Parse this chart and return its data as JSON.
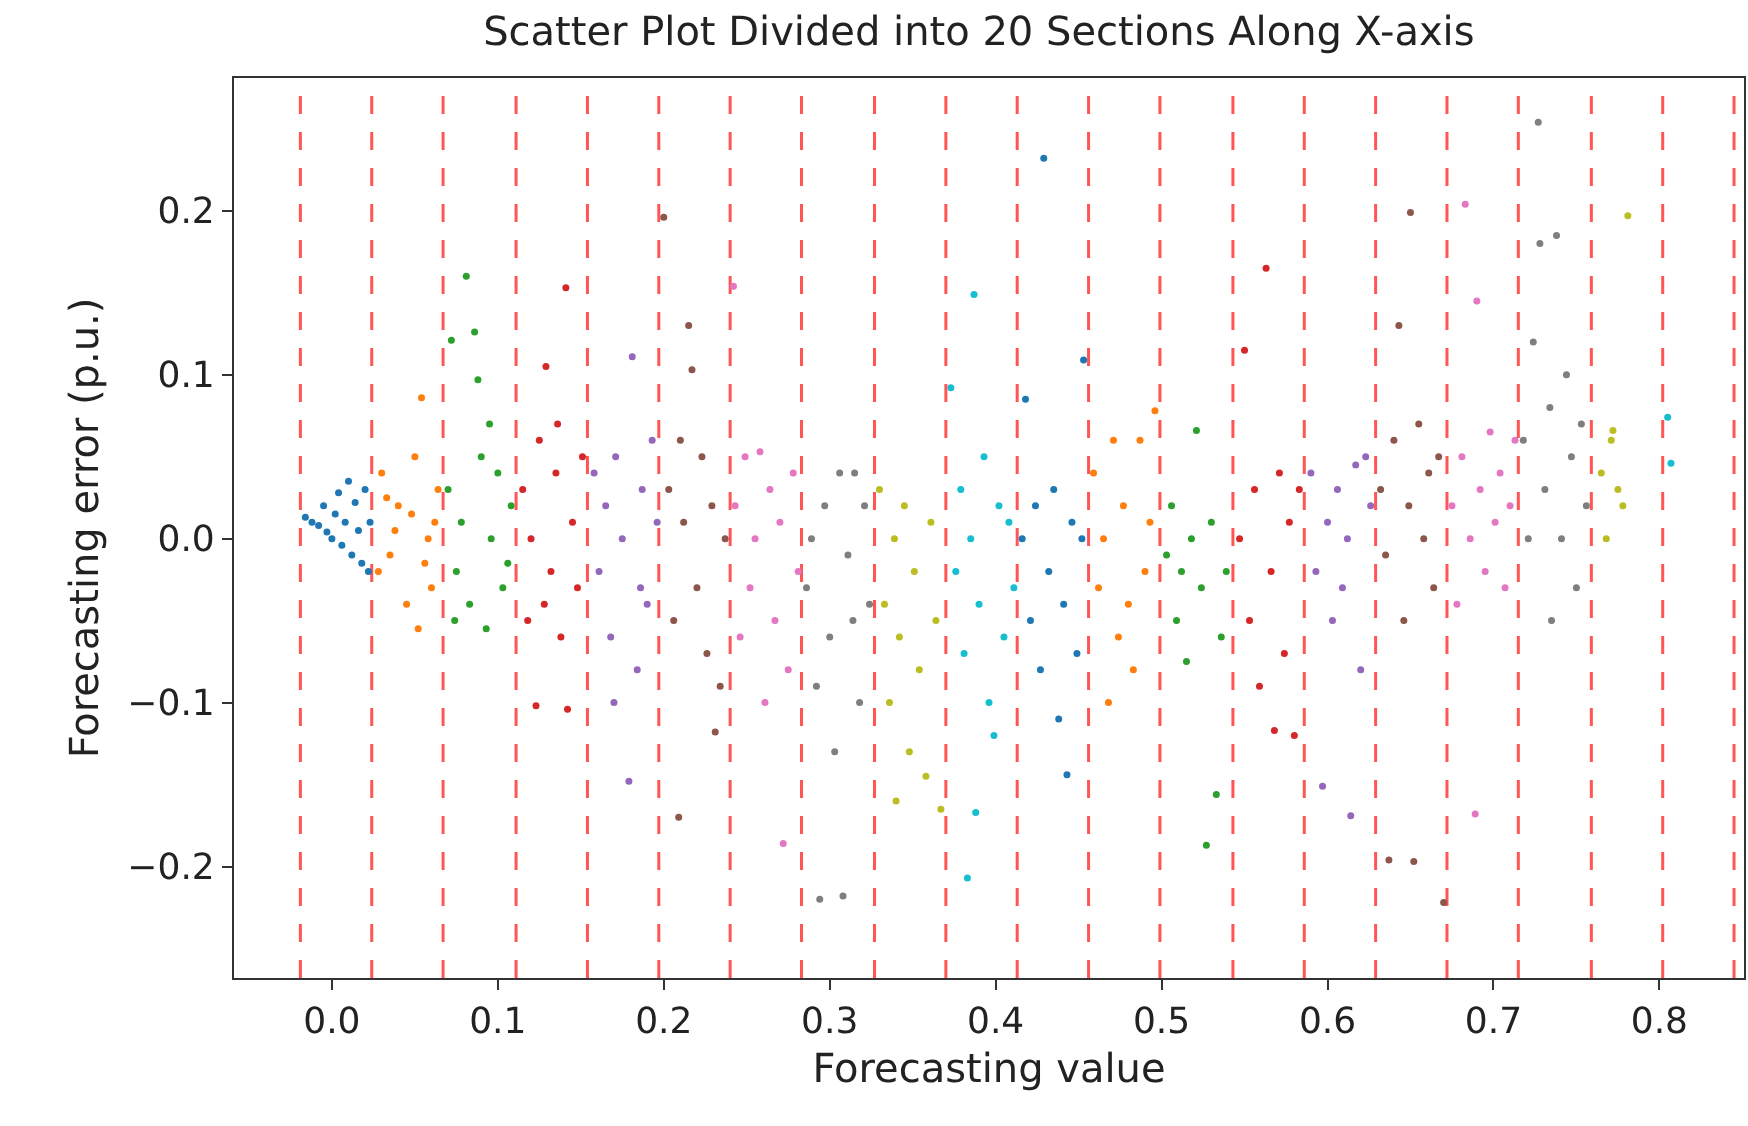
{
  "chart_data": {
    "type": "scatter",
    "title": "Scatter Plot Divided into 20 Sections Along X-axis",
    "xlabel": "Forecasting value",
    "ylabel": "Forecasting error (p.u.)",
    "xlim": [
      -0.059,
      0.851
    ],
    "ylim": [
      -0.268,
      0.281
    ],
    "xticks": [
      {
        "value": 0,
        "label": "0.0"
      },
      {
        "value": 0.1,
        "label": "0.1"
      },
      {
        "value": 0.2,
        "label": "0.2"
      },
      {
        "value": 0.3,
        "label": "0.3"
      },
      {
        "value": 0.4,
        "label": "0.4"
      },
      {
        "value": 0.5,
        "label": "0.5"
      },
      {
        "value": 0.6,
        "label": "0.6"
      },
      {
        "value": 0.7,
        "label": "0.7"
      },
      {
        "value": 0.8,
        "label": "0.8"
      }
    ],
    "yticks": [
      {
        "value": -0.2,
        "label": "−0.2"
      },
      {
        "value": -0.1,
        "label": "−0.1"
      },
      {
        "value": 0,
        "label": "0.0"
      },
      {
        "value": 0.1,
        "label": "0.1"
      },
      {
        "value": 0.2,
        "label": "0.2"
      }
    ],
    "grid": false,
    "marker": "circle",
    "series": [
      {
        "color": "#1f77b4",
        "x": [
          -0.016,
          -0.012,
          -0.008,
          -0.005,
          -0.003,
          0.0,
          0.002,
          0.004,
          0.006,
          0.008,
          0.01,
          0.012,
          0.014,
          0.016,
          0.018,
          0.02,
          0.022,
          0.023
        ],
        "values": [
          0.013,
          0.01,
          0.008,
          0.02,
          0.004,
          0.0,
          0.015,
          0.028,
          -0.004,
          0.01,
          0.035,
          -0.01,
          0.022,
          0.005,
          -0.015,
          0.03,
          -0.02,
          0.01
        ]
      },
      {
        "color": "#ff7f0e",
        "x": [
          0.03,
          0.035,
          0.04,
          0.045,
          0.05,
          0.054,
          0.058,
          0.06,
          0.064,
          0.028,
          0.038,
          0.048,
          0.052,
          0.062,
          0.033,
          0.056
        ],
        "values": [
          0.04,
          -0.01,
          0.02,
          -0.04,
          0.05,
          0.086,
          0.0,
          -0.03,
          0.03,
          -0.02,
          0.005,
          0.015,
          -0.055,
          0.01,
          0.025,
          -0.015
        ]
      },
      {
        "color": "#2ca02c",
        "x": [
          0.07,
          0.072,
          0.075,
          0.078,
          0.081,
          0.083,
          0.086,
          0.088,
          0.09,
          0.093,
          0.096,
          0.1,
          0.103,
          0.106,
          0.108,
          0.074,
          0.095
        ],
        "values": [
          0.03,
          0.121,
          -0.02,
          0.01,
          0.16,
          -0.04,
          0.126,
          0.097,
          0.05,
          -0.055,
          0.0,
          0.04,
          -0.03,
          -0.015,
          0.02,
          -0.05,
          0.07
        ]
      },
      {
        "color": "#d62728",
        "x": [
          0.115,
          0.118,
          0.12,
          0.123,
          0.125,
          0.129,
          0.132,
          0.135,
          0.138,
          0.141,
          0.142,
          0.145,
          0.148,
          0.151,
          0.128,
          0.136
        ],
        "values": [
          0.03,
          -0.05,
          0.0,
          -0.102,
          0.06,
          0.105,
          -0.02,
          0.04,
          -0.06,
          0.153,
          -0.104,
          0.01,
          -0.03,
          0.05,
          -0.04,
          0.07
        ]
      },
      {
        "color": "#9467bd",
        "x": [
          0.158,
          0.161,
          0.165,
          0.168,
          0.171,
          0.175,
          0.179,
          0.181,
          0.184,
          0.187,
          0.19,
          0.193,
          0.196,
          0.17,
          0.186
        ],
        "values": [
          0.04,
          -0.02,
          0.02,
          -0.06,
          0.05,
          0.0,
          -0.148,
          0.111,
          -0.08,
          0.03,
          -0.04,
          0.06,
          0.01,
          -0.1,
          -0.03
        ]
      },
      {
        "color": "#8c564b",
        "x": [
          0.2,
          0.203,
          0.206,
          0.209,
          0.212,
          0.215,
          0.217,
          0.22,
          0.223,
          0.226,
          0.229,
          0.231,
          0.234,
          0.237,
          0.21
        ],
        "values": [
          0.196,
          0.03,
          -0.05,
          -0.17,
          0.01,
          0.13,
          0.103,
          -0.03,
          0.05,
          -0.07,
          0.02,
          -0.118,
          -0.09,
          0.0,
          0.06
        ]
      },
      {
        "color": "#e377c2",
        "x": [
          0.242,
          0.243,
          0.246,
          0.249,
          0.252,
          0.255,
          0.258,
          0.261,
          0.264,
          0.267,
          0.27,
          0.272,
          0.275,
          0.278,
          0.281
        ],
        "values": [
          0.154,
          0.02,
          -0.06,
          0.05,
          -0.03,
          0.0,
          0.053,
          -0.1,
          0.03,
          -0.05,
          0.01,
          -0.186,
          -0.08,
          0.04,
          -0.02
        ]
      },
      {
        "color": "#7f7f7f",
        "x": [
          0.286,
          0.289,
          0.292,
          0.294,
          0.297,
          0.3,
          0.303,
          0.306,
          0.308,
          0.311,
          0.314,
          0.315,
          0.318,
          0.321,
          0.324
        ],
        "values": [
          -0.03,
          0.0,
          -0.09,
          -0.22,
          0.02,
          -0.06,
          -0.13,
          0.04,
          -0.218,
          -0.01,
          -0.05,
          0.04,
          -0.1,
          0.02,
          -0.04
        ]
      },
      {
        "color": "#bcbd22",
        "x": [
          0.33,
          0.333,
          0.336,
          0.339,
          0.342,
          0.345,
          0.348,
          0.351,
          0.354,
          0.358,
          0.361,
          0.364,
          0.367,
          0.34
        ],
        "values": [
          0.03,
          -0.04,
          -0.1,
          0.0,
          -0.06,
          0.02,
          -0.13,
          -0.02,
          -0.08,
          -0.145,
          0.01,
          -0.05,
          -0.165,
          -0.16
        ]
      },
      {
        "color": "#17becf",
        "x": [
          0.373,
          0.376,
          0.379,
          0.381,
          0.383,
          0.385,
          0.387,
          0.388,
          0.39,
          0.393,
          0.396,
          0.399,
          0.402,
          0.405,
          0.408,
          0.411
        ],
        "values": [
          0.092,
          -0.02,
          0.03,
          -0.07,
          -0.207,
          0.0,
          0.149,
          -0.167,
          -0.04,
          0.05,
          -0.1,
          -0.12,
          0.02,
          -0.06,
          0.01,
          -0.03
        ]
      },
      {
        "color": "#1f77b4",
        "x": [
          0.416,
          0.418,
          0.421,
          0.424,
          0.427,
          0.429,
          0.432,
          0.435,
          0.438,
          0.441,
          0.443,
          0.446,
          0.449,
          0.452,
          0.453
        ],
        "values": [
          0.0,
          0.085,
          -0.05,
          0.02,
          -0.08,
          0.232,
          -0.02,
          0.03,
          -0.11,
          -0.04,
          -0.144,
          0.01,
          -0.07,
          0.0,
          0.109
        ]
      },
      {
        "color": "#ff7f0e",
        "x": [
          0.459,
          0.462,
          0.465,
          0.468,
          0.471,
          0.474,
          0.477,
          0.48,
          0.483,
          0.487,
          0.49,
          0.493,
          0.496
        ],
        "values": [
          0.04,
          -0.03,
          0.0,
          -0.1,
          0.06,
          -0.06,
          0.02,
          -0.04,
          -0.08,
          0.06,
          -0.02,
          0.01,
          0.078
        ]
      },
      {
        "color": "#2ca02c",
        "x": [
          0.503,
          0.506,
          0.509,
          0.512,
          0.515,
          0.518,
          0.521,
          0.524,
          0.527,
          0.53,
          0.533,
          0.536,
          0.539
        ],
        "values": [
          -0.01,
          0.02,
          -0.05,
          -0.02,
          -0.075,
          0.0,
          0.066,
          -0.03,
          -0.187,
          0.01,
          -0.156,
          -0.06,
          -0.02
        ]
      },
      {
        "color": "#d62728",
        "x": [
          0.547,
          0.55,
          0.553,
          0.556,
          0.559,
          0.563,
          0.566,
          0.568,
          0.571,
          0.574,
          0.577,
          0.58,
          0.583
        ],
        "values": [
          0.0,
          0.115,
          -0.05,
          0.03,
          -0.09,
          0.165,
          -0.02,
          -0.117,
          0.04,
          -0.07,
          0.01,
          -0.12,
          0.03
        ]
      },
      {
        "color": "#9467bd",
        "x": [
          0.59,
          0.593,
          0.597,
          0.6,
          0.603,
          0.606,
          0.609,
          0.612,
          0.614,
          0.617,
          0.62,
          0.623,
          0.626
        ],
        "values": [
          0.04,
          -0.02,
          -0.151,
          0.01,
          -0.05,
          0.03,
          -0.03,
          0.0,
          -0.169,
          0.045,
          -0.08,
          0.05,
          0.02
        ]
      },
      {
        "color": "#8c564b",
        "x": [
          0.632,
          0.635,
          0.637,
          0.64,
          0.643,
          0.646,
          0.649,
          0.65,
          0.652,
          0.655,
          0.658,
          0.661,
          0.664,
          0.667,
          0.67
        ],
        "values": [
          0.03,
          -0.01,
          -0.196,
          0.06,
          0.13,
          -0.05,
          0.02,
          0.199,
          -0.197,
          0.07,
          0.0,
          0.04,
          -0.03,
          0.05,
          -0.222
        ]
      },
      {
        "color": "#e377c2",
        "x": [
          0.675,
          0.678,
          0.681,
          0.683,
          0.686,
          0.689,
          0.69,
          0.692,
          0.695,
          0.698,
          0.701,
          0.704,
          0.707,
          0.71,
          0.713
        ],
        "values": [
          0.02,
          -0.04,
          0.05,
          0.204,
          0.0,
          -0.168,
          0.145,
          0.03,
          -0.02,
          0.065,
          0.01,
          0.04,
          -0.03,
          0.02,
          0.06
        ]
      },
      {
        "color": "#7f7f7f",
        "x": [
          0.718,
          0.721,
          0.724,
          0.727,
          0.728,
          0.731,
          0.734,
          0.735,
          0.738,
          0.741,
          0.744,
          0.747,
          0.75,
          0.753,
          0.756
        ],
        "values": [
          0.06,
          0.0,
          0.12,
          0.254,
          0.18,
          0.03,
          0.08,
          -0.05,
          0.185,
          0.0,
          0.1,
          0.05,
          -0.03,
          0.07,
          0.02
        ]
      },
      {
        "color": "#bcbd22",
        "x": [
          0.765,
          0.768,
          0.771,
          0.772,
          0.775,
          0.778,
          0.781
        ],
        "values": [
          0.04,
          0.0,
          0.06,
          0.066,
          0.03,
          0.02,
          0.197
        ]
      },
      {
        "color": "#17becf",
        "x": [
          0.805,
          0.807
        ],
        "values": [
          0.074,
          0.046
        ]
      }
    ],
    "ref_lines": [
      {
        "axis": "x",
        "value": -0.019,
        "color": "#ff5555",
        "line_style": "dashed"
      },
      {
        "axis": "x",
        "value": 0.024,
        "color": "#ff5555",
        "line_style": "dashed"
      },
      {
        "axis": "x",
        "value": 0.067,
        "color": "#ff5555",
        "line_style": "dashed"
      },
      {
        "axis": "x",
        "value": 0.111,
        "color": "#ff5555",
        "line_style": "dashed"
      },
      {
        "axis": "x",
        "value": 0.154,
        "color": "#ff5555",
        "line_style": "dashed"
      },
      {
        "axis": "x",
        "value": 0.197,
        "color": "#ff5555",
        "line_style": "dashed"
      },
      {
        "axis": "x",
        "value": 0.24,
        "color": "#ff5555",
        "line_style": "dashed"
      },
      {
        "axis": "x",
        "value": 0.283,
        "color": "#ff5555",
        "line_style": "dashed"
      },
      {
        "axis": "x",
        "value": 0.327,
        "color": "#ff5555",
        "line_style": "dashed"
      },
      {
        "axis": "x",
        "value": 0.37,
        "color": "#ff5555",
        "line_style": "dashed"
      },
      {
        "axis": "x",
        "value": 0.413,
        "color": "#ff5555",
        "line_style": "dashed"
      },
      {
        "axis": "x",
        "value": 0.456,
        "color": "#ff5555",
        "line_style": "dashed"
      },
      {
        "axis": "x",
        "value": 0.499,
        "color": "#ff5555",
        "line_style": "dashed"
      },
      {
        "axis": "x",
        "value": 0.543,
        "color": "#ff5555",
        "line_style": "dashed"
      },
      {
        "axis": "x",
        "value": 0.586,
        "color": "#ff5555",
        "line_style": "dashed"
      },
      {
        "axis": "x",
        "value": 0.629,
        "color": "#ff5555",
        "line_style": "dashed"
      },
      {
        "axis": "x",
        "value": 0.672,
        "color": "#ff5555",
        "line_style": "dashed"
      },
      {
        "axis": "x",
        "value": 0.715,
        "color": "#ff5555",
        "line_style": "dashed"
      },
      {
        "axis": "x",
        "value": 0.759,
        "color": "#ff5555",
        "line_style": "dashed"
      },
      {
        "axis": "x",
        "value": 0.802,
        "color": "#ff5555",
        "line_style": "dashed"
      },
      {
        "axis": "x",
        "value": 0.845,
        "color": "#ff5555",
        "line_style": "dashed"
      }
    ]
  }
}
